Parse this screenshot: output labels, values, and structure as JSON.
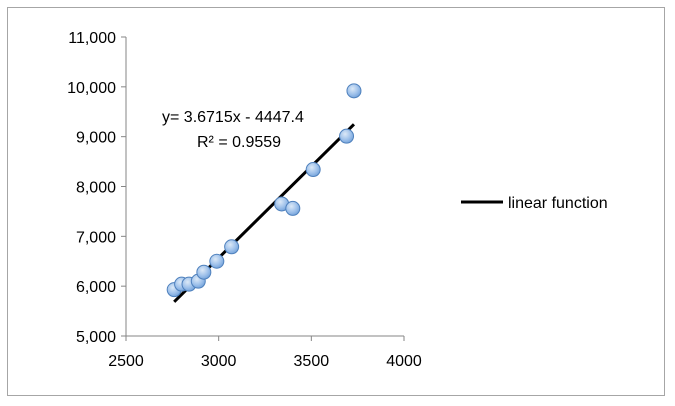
{
  "chart_data": {
    "type": "scatter",
    "title": "",
    "xlabel": "",
    "ylabel": "",
    "xlim": [
      2500,
      4000
    ],
    "ylim": [
      5000,
      11000
    ],
    "x_ticks": [
      "2500",
      "3000",
      "3500",
      "4000"
    ],
    "y_ticks": [
      "5,000",
      "6,000",
      "7,000",
      "8,000",
      "9,000",
      "10,000",
      "11,000"
    ],
    "grid": false,
    "points": [
      {
        "x": 2760,
        "y": 5930
      },
      {
        "x": 2800,
        "y": 6040
      },
      {
        "x": 2840,
        "y": 6040
      },
      {
        "x": 2890,
        "y": 6100
      },
      {
        "x": 2920,
        "y": 6280
      },
      {
        "x": 2990,
        "y": 6500
      },
      {
        "x": 3070,
        "y": 6790
      },
      {
        "x": 3340,
        "y": 7650
      },
      {
        "x": 3400,
        "y": 7560
      },
      {
        "x": 3510,
        "y": 8340
      },
      {
        "x": 3690,
        "y": 9010
      },
      {
        "x": 3730,
        "y": 9920
      }
    ],
    "trendline": {
      "name": "linear function",
      "slope": 3.6715,
      "intercept": -4447.4,
      "x_range": [
        2760,
        3730
      ],
      "equation_label": "y= 3.6715x - 4447.4",
      "r2_label": "R² = 0.9559",
      "color": "#000000"
    },
    "marker_color": "#8db4e2",
    "marker_edge_color": "#4f81bd",
    "legend": {
      "position": "right",
      "entries": [
        "linear function"
      ]
    }
  }
}
